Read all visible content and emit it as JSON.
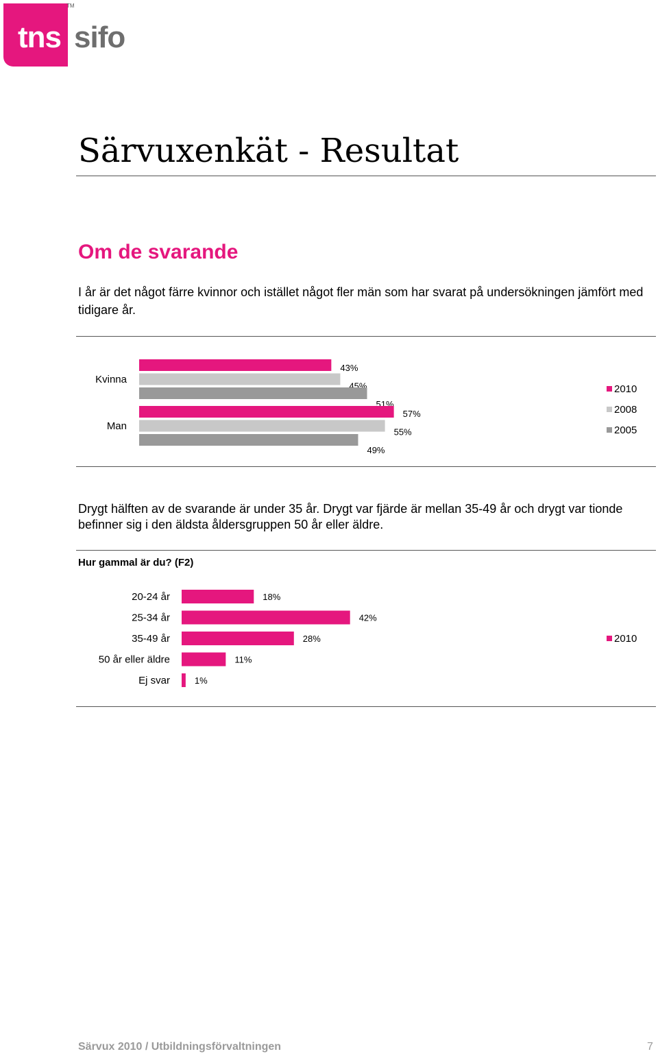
{
  "logo": {
    "primary": "tns",
    "secondary": "sifo",
    "trademark": "TM",
    "brand_color": "#e5177e"
  },
  "title": "Särvuxenkät - Resultat",
  "section_heading": "Om de svarande",
  "paragraph1": "I år är det något färre kvinnor och istället något fler män som har svarat på undersökningen jämfört med tidigare år.",
  "paragraph2": "Drygt hälften av de svarande är under 35 år. Drygt var fjärde är mellan 35-49 år och drygt var tionde befinner sig i den äldsta åldersgruppen 50 år eller äldre.",
  "question_label": "Hur gammal är du? (F2)",
  "footer": {
    "text": "Särvux 2010 / Utbildningsförvaltningen",
    "page_number": "7"
  },
  "chart_data": [
    {
      "type": "bar",
      "orientation": "horizontal",
      "categories": [
        "Kvinna",
        "Man"
      ],
      "series": [
        {
          "name": "2010",
          "color": "#e5177e",
          "values": [
            43,
            57
          ]
        },
        {
          "name": "2008",
          "color": "#c8c8c8",
          "values": [
            45,
            55
          ]
        },
        {
          "name": "2005",
          "color": "#999999",
          "values": [
            51,
            49
          ]
        }
      ],
      "value_suffix": "%",
      "xlim": [
        0,
        100
      ],
      "legend": "right"
    },
    {
      "type": "bar",
      "orientation": "horizontal",
      "categories": [
        "20-24 år",
        "25-34 år",
        "35-49 år",
        "50 år eller äldre",
        "Ej svar"
      ],
      "series": [
        {
          "name": "2010",
          "color": "#e5177e",
          "values": [
            18,
            42,
            28,
            11,
            1
          ]
        }
      ],
      "value_suffix": "%",
      "xlim": [
        0,
        100
      ],
      "legend": "right"
    }
  ]
}
